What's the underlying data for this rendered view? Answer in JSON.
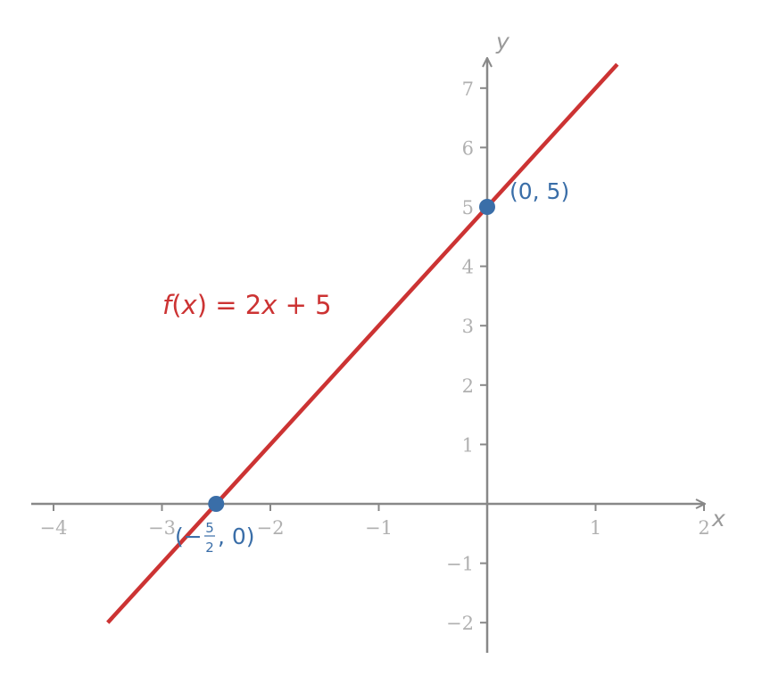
{
  "chart_data": {
    "type": "line",
    "title": "",
    "xlabel": "x",
    "ylabel": "y",
    "xlim": [
      -4.2,
      2.0
    ],
    "ylim": [
      -2.5,
      7.5
    ],
    "x_ticks": [
      -4,
      -3,
      -2,
      -1,
      1,
      2
    ],
    "x_tick_labels": [
      "−4",
      "−3",
      "−2",
      "−1",
      "1",
      "2"
    ],
    "y_ticks": [
      -2,
      -1,
      1,
      2,
      3,
      4,
      5,
      6,
      7
    ],
    "y_tick_labels": [
      "−2",
      "−1",
      "1",
      "2",
      "3",
      "4",
      "5",
      "6",
      "7"
    ],
    "grid": false,
    "series": [
      {
        "name": "",
        "slope": 2,
        "intercept": 5,
        "x": [
          -3.5,
          1.2
        ],
        "y": [
          -2,
          7.4
        ]
      }
    ],
    "points": [
      {
        "x": -2.5,
        "y": 0,
        "label_prefix": "(−",
        "frac_num": "5",
        "frac_den": "2",
        "label_suffix": ", 0)"
      },
      {
        "x": 0,
        "y": 5,
        "label": "(0, 5)"
      }
    ],
    "function_label": {
      "f": "f",
      "open": "(",
      "x": "x",
      "close": ")",
      "eq": " = 2",
      "x2": "x",
      "rest": " + 5"
    },
    "colors": {
      "line": "#cc3333",
      "points": "#3a6ea8",
      "axes": "#888888",
      "ticks": "#b0b0b0"
    }
  }
}
